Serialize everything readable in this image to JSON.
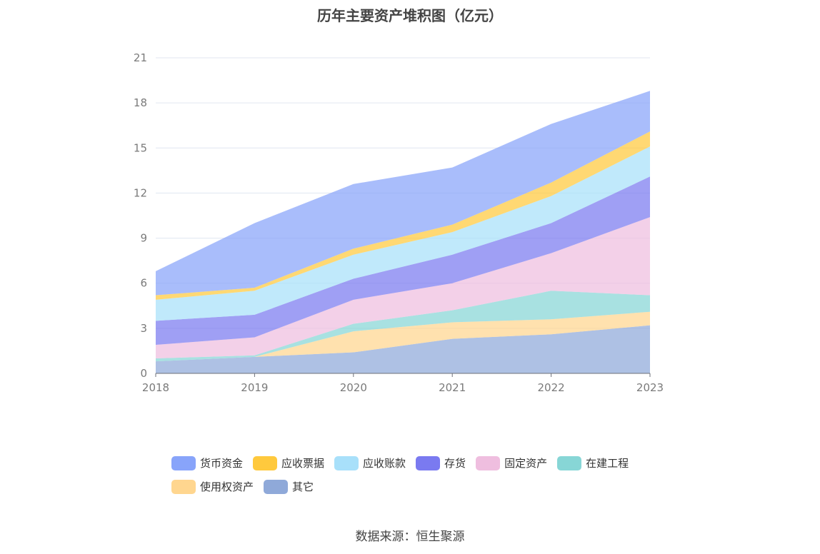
{
  "title": "历年主要资产堆积图（亿元）",
  "source": "数据来源：恒生聚源",
  "chart_data": {
    "type": "area",
    "stacked": true,
    "x": [
      "2018",
      "2019",
      "2020",
      "2021",
      "2022",
      "2023"
    ],
    "ylim": [
      0,
      21
    ],
    "yticks": [
      0,
      3,
      6,
      9,
      12,
      15,
      18,
      21
    ],
    "grid": true,
    "legend_position": "bottom",
    "series": [
      {
        "name": "其它",
        "color": "#8fa9d9",
        "values": [
          0.8,
          1.1,
          1.4,
          2.3,
          2.6,
          3.2
        ]
      },
      {
        "name": "使用权资产",
        "color": "#ffd68f",
        "values": [
          0.0,
          0.0,
          1.4,
          1.1,
          1.0,
          0.9
        ]
      },
      {
        "name": "在建工程",
        "color": "#87d6d6",
        "values": [
          0.2,
          0.1,
          0.5,
          0.8,
          1.9,
          1.1
        ]
      },
      {
        "name": "固定资产",
        "color": "#efbedf",
        "values": [
          0.9,
          1.2,
          1.6,
          1.8,
          2.5,
          5.2
        ]
      },
      {
        "name": "存货",
        "color": "#7a7af0",
        "values": [
          1.6,
          1.5,
          1.4,
          1.9,
          2.0,
          2.7
        ]
      },
      {
        "name": "应收账款",
        "color": "#a8e0fa",
        "values": [
          1.4,
          1.6,
          1.6,
          1.5,
          1.8,
          2.0
        ]
      },
      {
        "name": "应收票据",
        "color": "#ffc93d",
        "values": [
          0.3,
          0.2,
          0.4,
          0.5,
          0.9,
          1.0
        ]
      },
      {
        "name": "货币资金",
        "color": "#88a4fa",
        "values": [
          1.6,
          4.3,
          4.3,
          3.8,
          3.9,
          2.7
        ]
      }
    ],
    "legend_order": [
      "货币资金",
      "应收票据",
      "应收账款",
      "存货",
      "固定资产",
      "在建工程",
      "使用权资产",
      "其它"
    ]
  }
}
